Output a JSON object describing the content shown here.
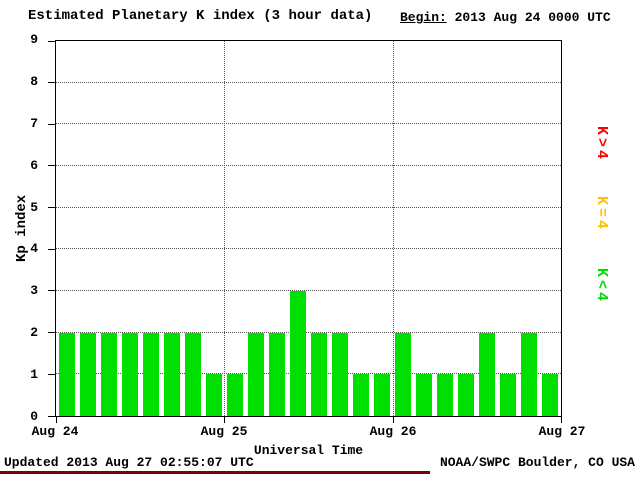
{
  "header": {
    "title": "Estimated Planetary K index (3 hour data)",
    "begin_label": "Begin:",
    "begin_value": "2013 Aug 24 0000 UTC"
  },
  "footer": {
    "updated": "Updated 2013 Aug 27 02:55:07 UTC",
    "source": "NOAA/SWPC Boulder, CO USA"
  },
  "legend": [
    {
      "label": "K>4",
      "color": "#ff0000"
    },
    {
      "label": "K=4",
      "color": "#ffc000"
    },
    {
      "label": "K<4",
      "color": "#00dd00"
    }
  ],
  "colors": {
    "bar_green": "#00df00",
    "divider_maroon": "#7b0000"
  },
  "chart_data": {
    "type": "bar",
    "title": "Estimated Planetary K index (3 hour data)",
    "xlabel": "Universal Time",
    "ylabel": "Kp index",
    "ylim": [
      0,
      9
    ],
    "yticks": [
      0,
      1,
      2,
      3,
      4,
      5,
      6,
      7,
      8,
      9
    ],
    "xticklabels": [
      "Aug 24",
      "Aug 25",
      "Aug 26",
      "Aug 27"
    ],
    "bars_per_day": 8,
    "interval_hours": 3,
    "values": [
      2,
      2,
      2,
      2,
      2,
      2,
      2,
      1,
      1,
      2,
      2,
      3,
      2,
      2,
      1,
      1,
      2,
      1,
      1,
      1,
      2,
      1,
      2,
      1
    ],
    "bar_color_rule": {
      "lt4": "#00df00",
      "eq4": "#ffc000",
      "gt4": "#ff0000"
    },
    "grid": "dotted horizontal lines at each integer, dotted vertical lines at day boundaries",
    "legend_position": "right, rotated 90deg"
  }
}
